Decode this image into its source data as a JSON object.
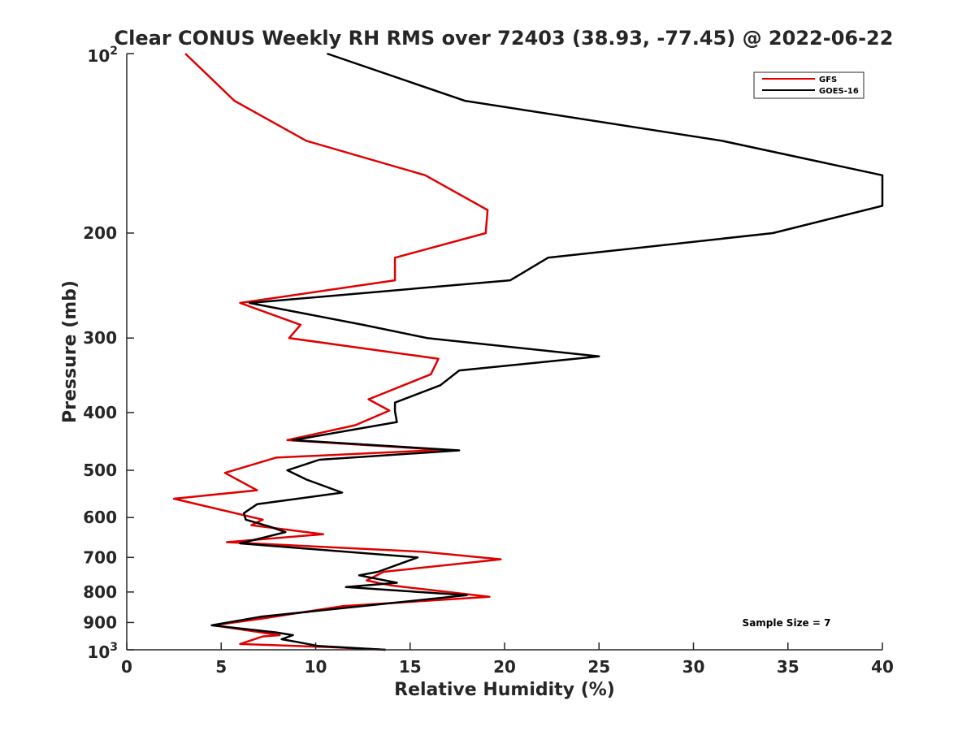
{
  "chart_data": {
    "type": "line",
    "title": "Clear CONUS Weekly RH RMS over 72403 (38.93, -77.45) @ 2022-06-22",
    "xlabel": "Relative Humidity (%)",
    "ylabel": "Pressure (mb)",
    "xlim": [
      0,
      40
    ],
    "ylim": [
      100,
      1000
    ],
    "y_scale": "log",
    "y_reversed": true,
    "x_ticks": [
      "0",
      "5",
      "10",
      "15",
      "20",
      "25",
      "30",
      "35",
      "40"
    ],
    "y_ticks": [
      {
        "value": 200,
        "label": "200"
      },
      {
        "value": 300,
        "label": "300"
      },
      {
        "value": 400,
        "label": "400"
      },
      {
        "value": 500,
        "label": "500"
      },
      {
        "value": 600,
        "label": "600"
      },
      {
        "value": 700,
        "label": "700"
      },
      {
        "value": 800,
        "label": "800"
      },
      {
        "value": 900,
        "label": "900"
      }
    ],
    "y_tick_100": {
      "base": "10",
      "exp": "2"
    },
    "y_tick_1000": {
      "base": "10",
      "exp": "3"
    },
    "legend_position": "top-right",
    "annotation": "Sample Size = 7",
    "series": [
      {
        "name": "GFS",
        "color": "#e00000",
        "points": [
          [
            3.1,
            100
          ],
          [
            5.7,
            120
          ],
          [
            9.5,
            140
          ],
          [
            15.8,
            160
          ],
          [
            19.1,
            183
          ],
          [
            19.0,
            200
          ],
          [
            14.2,
            220
          ],
          [
            14.2,
            240
          ],
          [
            6.0,
            262
          ],
          [
            9.2,
            285
          ],
          [
            8.6,
            300
          ],
          [
            16.5,
            325
          ],
          [
            16.1,
            345
          ],
          [
            12.8,
            380
          ],
          [
            13.9,
            397
          ],
          [
            12.1,
            420
          ],
          [
            8.5,
            445
          ],
          [
            16.7,
            462
          ],
          [
            7.9,
            476
          ],
          [
            5.2,
            505
          ],
          [
            6.9,
            540
          ],
          [
            2.5,
            558
          ],
          [
            7.2,
            605
          ],
          [
            6.6,
            618
          ],
          [
            10.4,
            640
          ],
          [
            5.3,
            660
          ],
          [
            15.7,
            685
          ],
          [
            19.8,
            705
          ],
          [
            13.6,
            740
          ],
          [
            12.7,
            765
          ],
          [
            14.0,
            780
          ],
          [
            19.2,
            815
          ],
          [
            11.4,
            845
          ],
          [
            7.3,
            885
          ],
          [
            4.6,
            910
          ],
          [
            8.1,
            945
          ],
          [
            7.2,
            950
          ],
          [
            6.0,
            978
          ],
          [
            10.8,
            990
          ],
          [
            13.7,
            1000
          ]
        ]
      },
      {
        "name": "GOES-16",
        "color": "#000000",
        "points": [
          [
            10.6,
            100
          ],
          [
            17.9,
            120
          ],
          [
            31.5,
            140
          ],
          [
            40.0,
            160
          ],
          [
            40.0,
            180
          ],
          [
            34.2,
            200
          ],
          [
            22.3,
            220
          ],
          [
            20.3,
            240
          ],
          [
            6.5,
            262
          ],
          [
            12.5,
            285
          ],
          [
            15.9,
            300
          ],
          [
            25.0,
            322
          ],
          [
            17.6,
            340
          ],
          [
            16.6,
            360
          ],
          [
            14.2,
            385
          ],
          [
            14.2,
            398
          ],
          [
            14.3,
            415
          ],
          [
            8.8,
            445
          ],
          [
            17.6,
            463
          ],
          [
            10.2,
            480
          ],
          [
            8.5,
            500
          ],
          [
            9.5,
            518
          ],
          [
            11.4,
            545
          ],
          [
            6.9,
            570
          ],
          [
            6.2,
            590
          ],
          [
            6.3,
            605
          ],
          [
            7.6,
            622
          ],
          [
            8.4,
            635
          ],
          [
            6.0,
            663
          ],
          [
            15.4,
            700
          ],
          [
            13.3,
            740
          ],
          [
            12.3,
            750
          ],
          [
            14.3,
            772
          ],
          [
            11.6,
            785
          ],
          [
            18.0,
            810
          ],
          [
            7.1,
            880
          ],
          [
            4.5,
            910
          ],
          [
            7.9,
            935
          ],
          [
            8.8,
            945
          ],
          [
            8.2,
            960
          ],
          [
            9.0,
            970
          ],
          [
            10.1,
            985
          ],
          [
            13.7,
            1000
          ]
        ]
      }
    ]
  }
}
